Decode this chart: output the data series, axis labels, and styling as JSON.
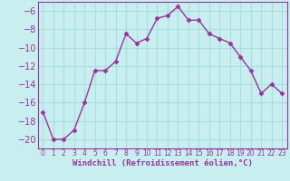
{
  "x": [
    0,
    1,
    2,
    3,
    4,
    5,
    6,
    7,
    8,
    9,
    10,
    11,
    12,
    13,
    14,
    15,
    16,
    17,
    18,
    19,
    20,
    21,
    22,
    23
  ],
  "y": [
    -17,
    -20,
    -20,
    -19,
    -16,
    -12.5,
    -12.5,
    -11.5,
    -8.5,
    -9.5,
    -9.0,
    -6.8,
    -6.5,
    -5.5,
    -7.0,
    -7.0,
    -8.5,
    -9.0,
    -9.5,
    -11.0,
    -12.5,
    -15.0,
    -14.0,
    -15.0
  ],
  "line_color": "#993399",
  "marker": "D",
  "marker_size": 2.5,
  "bg_color": "#c8eef0",
  "grid_color": "#aadddd",
  "xlabel": "Windchill (Refroidissement éolien,°C)",
  "xlim": [
    -0.5,
    23.5
  ],
  "ylim": [
    -21,
    -5
  ],
  "yticks": [
    -20,
    -18,
    -16,
    -14,
    -12,
    -10,
    -8,
    -6
  ],
  "xticks": [
    0,
    1,
    2,
    3,
    4,
    5,
    6,
    7,
    8,
    9,
    10,
    11,
    12,
    13,
    14,
    15,
    16,
    17,
    18,
    19,
    20,
    21,
    22,
    23
  ],
  "xlabel_fontsize": 6.5,
  "ytick_fontsize": 7,
  "xtick_fontsize": 5.5,
  "linewidth": 1.0
}
